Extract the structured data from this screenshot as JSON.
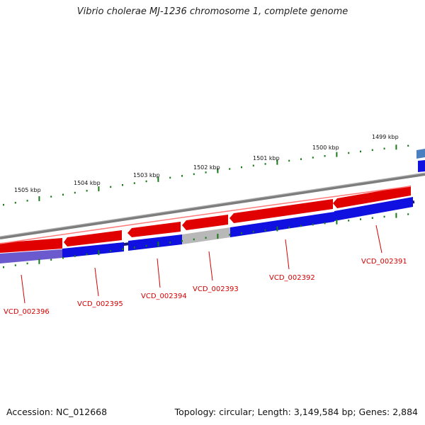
{
  "title": "Vibrio cholerae MJ-1236 chromosome 1, complete genome",
  "footer": {
    "accession": "Accession: NC_012668",
    "summary": "Topology: circular; Length: 3,149,584 bp; Genes: 2,884"
  },
  "kbp_labels": [
    "1505 kbp",
    "1504 kbp",
    "1503 kbp",
    "1502 kbp",
    "1501 kbp",
    "1500 kbp",
    "1499 kbp"
  ],
  "gene_labels": [
    "VCD_002396",
    "VCD_002395",
    "VCD_002394",
    "VCD_002393",
    "VCD_002392",
    "VCD_002391"
  ],
  "colors": {
    "forward_gene": "#e00000",
    "reverse_cds": "#1010e0",
    "grey_feature": "#b8b8b8",
    "backbone": "#888888",
    "ticks": "#1a7a1a",
    "label": "#d40000"
  }
}
